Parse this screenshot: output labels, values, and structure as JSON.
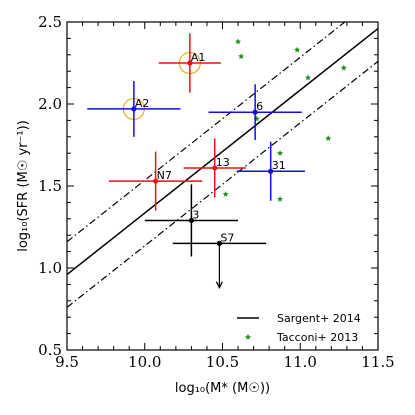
{
  "chart_data": {
    "type": "scatter",
    "xlabel": "log₁₀(M* (M☉))",
    "ylabel": "log₁₀(SFR (M☉ yr⁻¹))",
    "xlim": [
      9.5,
      11.5
    ],
    "ylim": [
      0.5,
      2.5
    ],
    "x_ticks": [
      "9.5",
      "10.0",
      "10.5",
      "11.0",
      "11.5"
    ],
    "y_ticks": [
      "0.5",
      "1.0",
      "1.5",
      "2.0",
      "2.5"
    ],
    "grid": false,
    "legend_position": "bottom-right",
    "colors": {
      "red": "#ee1111",
      "blue": "#1111dd",
      "black": "#000000",
      "green": "#228B22",
      "orange": "#f5a623"
    },
    "lines": [
      {
        "name": "Sargent+ 2014",
        "style": "solid",
        "x": [
          9.5,
          11.5
        ],
        "y": [
          0.96,
          2.46
        ]
      },
      {
        "name": "",
        "style": "dashdot",
        "x": [
          9.5,
          11.5
        ],
        "y": [
          1.16,
          2.66
        ]
      },
      {
        "name": "",
        "style": "dashdot",
        "x": [
          9.5,
          11.5
        ],
        "y": [
          0.76,
          2.26
        ]
      }
    ],
    "points": [
      {
        "label": "A1",
        "x": 10.29,
        "y": 2.25,
        "xerr": 0.2,
        "yerr": 0.18,
        "color": "red",
        "circle": true
      },
      {
        "label": "A2",
        "x": 9.93,
        "y": 1.97,
        "xerr": 0.3,
        "yerr": 0.17,
        "color": "blue",
        "circle": true
      },
      {
        "label": "6",
        "x": 10.71,
        "y": 1.95,
        "xerr": 0.3,
        "yerr": 0.17,
        "color": "blue",
        "circle": false
      },
      {
        "label": "13",
        "x": 10.45,
        "y": 1.61,
        "xerr": 0.2,
        "yerr": 0.18,
        "color": "red",
        "circle": false
      },
      {
        "label": "N7",
        "x": 10.07,
        "y": 1.53,
        "xerr": 0.3,
        "yerr": 0.18,
        "color": "red",
        "circle": false
      },
      {
        "label": "31",
        "x": 10.81,
        "y": 1.59,
        "xerr": 0.22,
        "yerr": 0.18,
        "color": "blue",
        "circle": false
      },
      {
        "label": "3",
        "x": 10.3,
        "y": 1.29,
        "xerr": 0.3,
        "yerr": 0.22,
        "color": "black",
        "circle": false
      },
      {
        "label": "S7",
        "x": 10.48,
        "y": 1.15,
        "xerr": 0.3,
        "yerr": 0,
        "color": "black",
        "circle": false,
        "upper_limit": true
      }
    ],
    "tacconi_points": [
      {
        "x": 10.6,
        "y": 2.38
      },
      {
        "x": 10.62,
        "y": 2.29
      },
      {
        "x": 10.98,
        "y": 2.33
      },
      {
        "x": 11.05,
        "y": 2.16
      },
      {
        "x": 11.28,
        "y": 2.22
      },
      {
        "x": 10.72,
        "y": 1.91
      },
      {
        "x": 11.18,
        "y": 1.79
      },
      {
        "x": 10.87,
        "y": 1.7
      },
      {
        "x": 10.87,
        "y": 1.42
      },
      {
        "x": 10.52,
        "y": 1.45
      }
    ],
    "legend": [
      {
        "label": "Sargent+ 2014",
        "marker": "line"
      },
      {
        "label": "Tacconi+ 2013",
        "marker": "star"
      }
    ]
  }
}
